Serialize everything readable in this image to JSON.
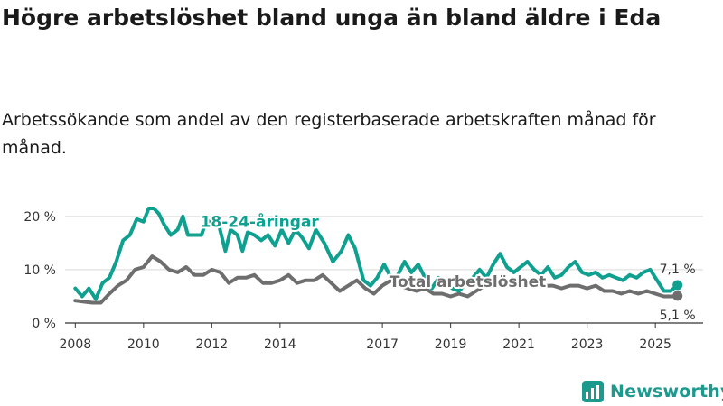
{
  "header": {
    "title": "Högre arbetslöshet bland unga än bland äldre i Eda",
    "subtitle": "Arbetssökande som andel av den registerbaserade arbetskraften månad för månad."
  },
  "brand": {
    "name": "Newsworthy",
    "color": "#1d9a8e"
  },
  "chart_data": {
    "type": "line",
    "title": "Högre arbetslöshet bland unga än bland äldre i Eda",
    "subtitle": "Arbetssökande som andel av den registerbaserade arbetskraften månad för månad.",
    "xlabel": "",
    "ylabel": "",
    "xlim": [
      2007.7,
      2026.4
    ],
    "ylim": [
      0,
      22
    ],
    "y_ticks": [
      0,
      10,
      20
    ],
    "y_tick_labels": [
      "0 %",
      "10 %",
      "20 %"
    ],
    "x_ticks": [
      2008,
      2010,
      2012,
      2014,
      2017,
      2019,
      2021,
      2023,
      2025
    ],
    "x_tick_labels": [
      "2008",
      "2010",
      "2012",
      "2014",
      "2017",
      "2019",
      "2021",
      "2023",
      "2025"
    ],
    "grid": true,
    "series": [
      {
        "name": "18-24-åringar",
        "color": "#0fa090",
        "end_label": "7,1 %",
        "points": [
          [
            2008.0,
            6.5
          ],
          [
            2008.2,
            5.0
          ],
          [
            2008.4,
            6.5
          ],
          [
            2008.6,
            4.5
          ],
          [
            2008.8,
            7.5
          ],
          [
            2009.0,
            8.5
          ],
          [
            2009.2,
            11.5
          ],
          [
            2009.4,
            15.5
          ],
          [
            2009.6,
            16.5
          ],
          [
            2009.8,
            19.5
          ],
          [
            2010.0,
            19.0
          ],
          [
            2010.15,
            21.5
          ],
          [
            2010.3,
            21.5
          ],
          [
            2010.45,
            20.5
          ],
          [
            2010.6,
            18.5
          ],
          [
            2010.8,
            16.5
          ],
          [
            2011.0,
            17.5
          ],
          [
            2011.15,
            20.0
          ],
          [
            2011.3,
            16.5
          ],
          [
            2011.5,
            16.5
          ],
          [
            2011.7,
            16.5
          ],
          [
            2011.85,
            19.5
          ],
          [
            2012.0,
            18.5
          ],
          [
            2012.2,
            18.5
          ],
          [
            2012.4,
            13.5
          ],
          [
            2012.55,
            17.5
          ],
          [
            2012.75,
            16.5
          ],
          [
            2012.9,
            13.5
          ],
          [
            2013.05,
            17.0
          ],
          [
            2013.25,
            16.5
          ],
          [
            2013.45,
            15.5
          ],
          [
            2013.65,
            16.5
          ],
          [
            2013.85,
            14.5
          ],
          [
            2014.05,
            17.5
          ],
          [
            2014.25,
            15.0
          ],
          [
            2014.45,
            17.5
          ],
          [
            2014.65,
            16.0
          ],
          [
            2014.85,
            14.0
          ],
          [
            2015.05,
            17.5
          ],
          [
            2015.3,
            15.0
          ],
          [
            2015.55,
            11.5
          ],
          [
            2015.8,
            13.5
          ],
          [
            2016.0,
            16.5
          ],
          [
            2016.2,
            14.0
          ],
          [
            2016.45,
            8.0
          ],
          [
            2016.65,
            7.0
          ],
          [
            2016.85,
            8.5
          ],
          [
            2017.05,
            11.0
          ],
          [
            2017.25,
            8.5
          ],
          [
            2017.45,
            9.0
          ],
          [
            2017.65,
            11.5
          ],
          [
            2017.85,
            9.5
          ],
          [
            2018.05,
            11.0
          ],
          [
            2018.25,
            8.5
          ],
          [
            2018.45,
            6.5
          ],
          [
            2018.65,
            8.5
          ],
          [
            2018.85,
            7.5
          ],
          [
            2019.05,
            6.5
          ],
          [
            2019.25,
            6.0
          ],
          [
            2019.45,
            7.5
          ],
          [
            2019.65,
            8.5
          ],
          [
            2019.85,
            10.0
          ],
          [
            2020.05,
            8.5
          ],
          [
            2020.25,
            11.0
          ],
          [
            2020.45,
            13.0
          ],
          [
            2020.65,
            10.5
          ],
          [
            2020.85,
            9.5
          ],
          [
            2021.05,
            10.5
          ],
          [
            2021.25,
            11.5
          ],
          [
            2021.45,
            10.0
          ],
          [
            2021.65,
            9.0
          ],
          [
            2021.85,
            10.5
          ],
          [
            2022.05,
            8.5
          ],
          [
            2022.25,
            9.0
          ],
          [
            2022.45,
            10.5
          ],
          [
            2022.65,
            11.5
          ],
          [
            2022.85,
            9.5
          ],
          [
            2023.05,
            9.0
          ],
          [
            2023.25,
            9.5
          ],
          [
            2023.45,
            8.5
          ],
          [
            2023.65,
            9.0
          ],
          [
            2023.85,
            8.5
          ],
          [
            2024.05,
            8.0
          ],
          [
            2024.25,
            9.0
          ],
          [
            2024.45,
            8.5
          ],
          [
            2024.65,
            9.5
          ],
          [
            2024.85,
            10.0
          ],
          [
            2025.05,
            8.0
          ],
          [
            2025.25,
            6.0
          ],
          [
            2025.45,
            6.0
          ],
          [
            2025.65,
            7.1
          ]
        ]
      },
      {
        "name": "Total arbetslöshet",
        "color": "#6e6e6e",
        "end_label": "5,1 %",
        "points": [
          [
            2008.0,
            4.2
          ],
          [
            2008.25,
            4.0
          ],
          [
            2008.5,
            3.8
          ],
          [
            2008.75,
            3.8
          ],
          [
            2009.0,
            5.5
          ],
          [
            2009.25,
            7.0
          ],
          [
            2009.5,
            8.0
          ],
          [
            2009.75,
            10.0
          ],
          [
            2010.0,
            10.5
          ],
          [
            2010.25,
            12.5
          ],
          [
            2010.5,
            11.5
          ],
          [
            2010.75,
            10.0
          ],
          [
            2011.0,
            9.5
          ],
          [
            2011.25,
            10.5
          ],
          [
            2011.5,
            9.0
          ],
          [
            2011.75,
            9.0
          ],
          [
            2012.0,
            10.0
          ],
          [
            2012.25,
            9.5
          ],
          [
            2012.5,
            7.5
          ],
          [
            2012.75,
            8.5
          ],
          [
            2013.0,
            8.5
          ],
          [
            2013.25,
            9.0
          ],
          [
            2013.5,
            7.5
          ],
          [
            2013.75,
            7.5
          ],
          [
            2014.0,
            8.0
          ],
          [
            2014.25,
            9.0
          ],
          [
            2014.5,
            7.5
          ],
          [
            2014.75,
            8.0
          ],
          [
            2015.0,
            8.0
          ],
          [
            2015.25,
            9.0
          ],
          [
            2015.5,
            7.5
          ],
          [
            2015.75,
            6.0
          ],
          [
            2016.0,
            7.0
          ],
          [
            2016.25,
            8.0
          ],
          [
            2016.5,
            6.5
          ],
          [
            2016.75,
            5.5
          ],
          [
            2017.0,
            7.0
          ],
          [
            2017.25,
            8.0
          ],
          [
            2017.5,
            7.0
          ],
          [
            2017.75,
            6.5
          ],
          [
            2018.0,
            6.0
          ],
          [
            2018.25,
            6.5
          ],
          [
            2018.5,
            5.5
          ],
          [
            2018.75,
            5.5
          ],
          [
            2019.0,
            5.0
          ],
          [
            2019.25,
            5.5
          ],
          [
            2019.5,
            5.0
          ],
          [
            2019.75,
            6.0
          ],
          [
            2020.0,
            7.0
          ],
          [
            2020.25,
            7.5
          ],
          [
            2020.5,
            8.0
          ],
          [
            2020.75,
            7.5
          ],
          [
            2021.0,
            7.0
          ],
          [
            2021.25,
            8.0
          ],
          [
            2021.5,
            7.5
          ],
          [
            2021.75,
            7.0
          ],
          [
            2022.0,
            7.0
          ],
          [
            2022.25,
            6.5
          ],
          [
            2022.5,
            7.0
          ],
          [
            2022.75,
            7.0
          ],
          [
            2023.0,
            6.5
          ],
          [
            2023.25,
            7.0
          ],
          [
            2023.5,
            6.0
          ],
          [
            2023.75,
            6.0
          ],
          [
            2024.0,
            5.5
          ],
          [
            2024.25,
            6.0
          ],
          [
            2024.5,
            5.5
          ],
          [
            2024.75,
            6.0
          ],
          [
            2025.0,
            5.5
          ],
          [
            2025.25,
            5.0
          ],
          [
            2025.5,
            5.0
          ],
          [
            2025.65,
            5.1
          ]
        ]
      }
    ],
    "annotations": [
      {
        "text": "18-24-åringar",
        "series": 0,
        "x": 2013.4,
        "y": 18.0
      },
      {
        "text": "Total arbetslöshet",
        "series": 1,
        "x": 2019.5,
        "y": 6.8
      }
    ]
  }
}
